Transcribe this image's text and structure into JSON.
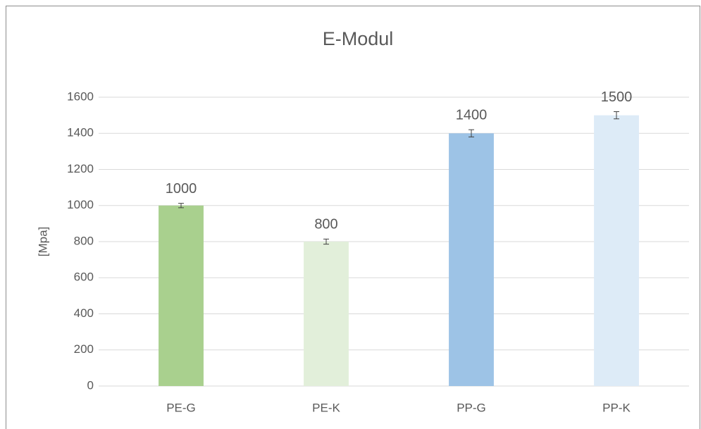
{
  "chart_data": {
    "type": "bar",
    "title": "E-Modul",
    "y_label": "[Mpa]",
    "categories": [
      "PE-G",
      "PE-K",
      "PP-G",
      "PP-K"
    ],
    "values": [
      1000,
      800,
      1400,
      1500
    ],
    "errors": [
      12,
      14,
      20,
      20
    ],
    "colors": [
      "#a9d08e",
      "#e2efda",
      "#9dc3e6",
      "#ddebf7"
    ],
    "ylim": [
      0,
      1600
    ],
    "yticks": [
      0,
      200,
      400,
      600,
      800,
      1000,
      1200,
      1400,
      1600
    ],
    "grid": true
  }
}
